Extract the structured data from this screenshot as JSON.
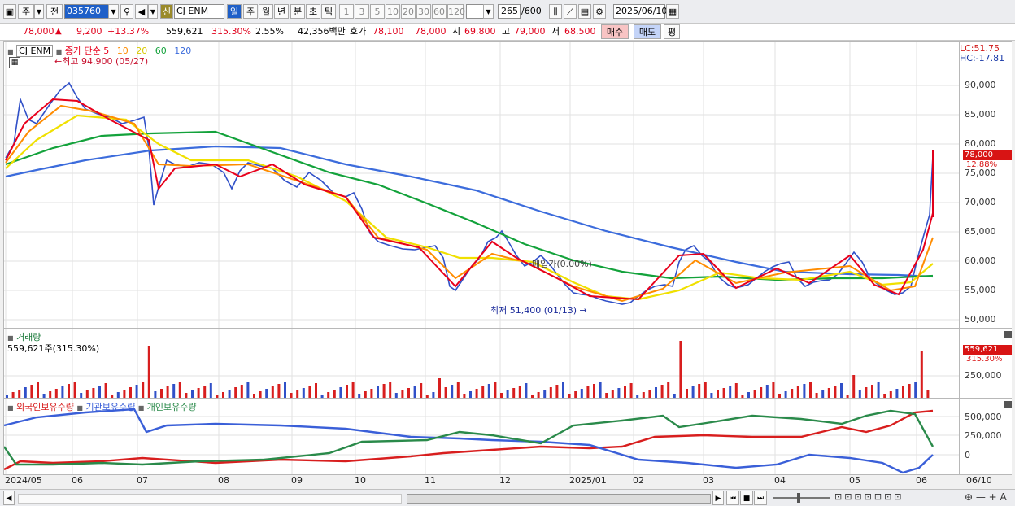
{
  "toolbar": {
    "period_label": "주",
    "prev_label": "전",
    "code_value": "035760",
    "stock_tag": "신",
    "name_value": "CJ ENM",
    "period_buttons": [
      "일",
      "주",
      "월",
      "년",
      "분",
      "초",
      "틱"
    ],
    "interval_buttons": [
      "1",
      "3",
      "5",
      "10",
      "20",
      "30",
      "60",
      "120"
    ],
    "count_value": "265",
    "count_total": "/600",
    "date_value": "2025/06/10"
  },
  "quote": {
    "price": "78,000",
    "change": "9,200",
    "change_pct": "+13.37%",
    "volume": "559,621",
    "volume_ratio": "315.30%",
    "turnover": "2.55%",
    "amount": "42,356백만",
    "bid_label": "호가",
    "bid1": "78,100",
    "bid2": "78,000",
    "open_label": "시",
    "open": "69,800",
    "high_label": "고",
    "high": "79,000",
    "low_label": "저",
    "low": "68,500",
    "buy_label": "매수",
    "sell_label": "매도",
    "eval_label": "평"
  },
  "main_panel": {
    "series_name": "CJ ENM",
    "ma_title": "종가 단순",
    "ma_periods": [
      "5",
      "10",
      "20",
      "60",
      "120"
    ],
    "ma_colors": [
      "#e8001c",
      "#ff8c00",
      "#f0e000",
      "#13a23b",
      "#3c6cdc"
    ],
    "high_annotation": "최고 94,900 (05/27)",
    "low_annotation": "최저 51,400 (01/13)",
    "mid_annotation": "매입가(0.00%)",
    "lc": "LC:51.75",
    "hc": "HC:-17.81",
    "last_price_tag": "78,000",
    "last_pct_tag": "12.88%",
    "y_ticks": [
      "90,000",
      "85,000",
      "80,000",
      "75,000",
      "70,000",
      "65,000",
      "60,000",
      "55,000",
      "50,000"
    ]
  },
  "volume_panel": {
    "title": "거래량",
    "value_text": "559,621주(315.30%)",
    "tag_value": "559,621",
    "tag_pct": "315.30%",
    "y_ticks": [
      "250,000"
    ]
  },
  "holding_panel": {
    "legend": [
      "외국인보유수량",
      "기관보유수량",
      "개인보유수량"
    ],
    "legend_colors": [
      "#d81e1e",
      "#3a5fd8",
      "#2a8a4a"
    ],
    "y_ticks": [
      "500,000",
      "250,000",
      "0"
    ]
  },
  "x_labels": [
    "2024/05",
    "06",
    "07",
    "08",
    "09",
    "10",
    "11",
    "12",
    "2025/01",
    "02",
    "03",
    "04",
    "05",
    "06"
  ],
  "x_end_label": "06/10"
}
